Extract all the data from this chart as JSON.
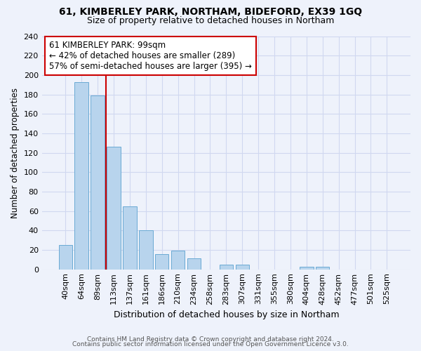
{
  "title": "61, KIMBERLEY PARK, NORTHAM, BIDEFORD, EX39 1GQ",
  "subtitle": "Size of property relative to detached houses in Northam",
  "xlabel": "Distribution of detached houses by size in Northam",
  "ylabel": "Number of detached properties",
  "bar_labels": [
    "40sqm",
    "64sqm",
    "89sqm",
    "113sqm",
    "137sqm",
    "161sqm",
    "186sqm",
    "210sqm",
    "234sqm",
    "258sqm",
    "283sqm",
    "307sqm",
    "331sqm",
    "355sqm",
    "380sqm",
    "404sqm",
    "428sqm",
    "452sqm",
    "477sqm",
    "501sqm",
    "525sqm"
  ],
  "bar_values": [
    25,
    193,
    179,
    126,
    65,
    40,
    16,
    19,
    11,
    0,
    5,
    5,
    0,
    0,
    0,
    3,
    3,
    0,
    0,
    0,
    0
  ],
  "bar_color": "#b8d4ed",
  "bar_edge_color": "#6aaad4",
  "vline_color": "#cc0000",
  "annotation_text": "61 KIMBERLEY PARK: 99sqm\n← 42% of detached houses are smaller (289)\n57% of semi-detached houses are larger (395) →",
  "annotation_box_edgecolor": "#cc0000",
  "annotation_box_facecolor": "#ffffff",
  "ylim": [
    0,
    240
  ],
  "yticks": [
    0,
    20,
    40,
    60,
    80,
    100,
    120,
    140,
    160,
    180,
    200,
    220,
    240
  ],
  "footer_line1": "Contains HM Land Registry data © Crown copyright and database right 2024.",
  "footer_line2": "Contains public sector information licensed under the Open Government Licence v3.0.",
  "bg_color": "#eef2fb",
  "grid_color": "#d0d8f0"
}
